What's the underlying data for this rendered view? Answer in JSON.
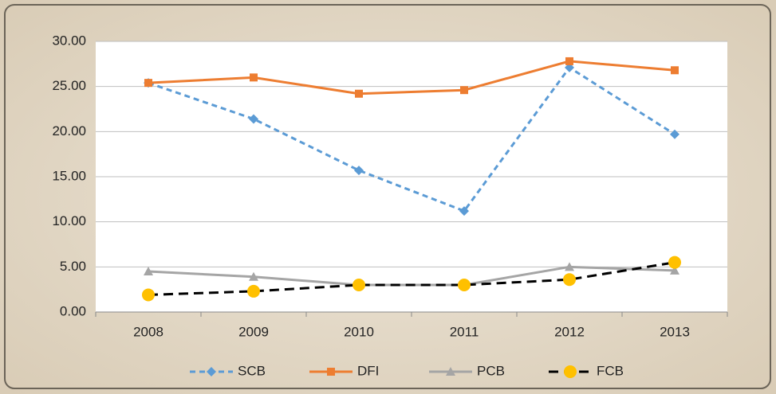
{
  "chart_data": {
    "type": "line",
    "categories": [
      "2008",
      "2009",
      "2010",
      "2011",
      "2012",
      "2013"
    ],
    "series": [
      {
        "name": "SCB",
        "color": "#5b9bd5",
        "dash": "dashed",
        "marker": "diamond",
        "values": [
          25.4,
          21.4,
          15.7,
          11.2,
          27.1,
          19.7
        ]
      },
      {
        "name": "DFI",
        "color": "#ed7d31",
        "dash": "solid",
        "marker": "square",
        "values": [
          25.4,
          26.0,
          24.2,
          24.6,
          27.8,
          26.8
        ]
      },
      {
        "name": "PCB",
        "color": "#a5a5a5",
        "dash": "solid",
        "marker": "triangle",
        "values": [
          4.5,
          3.9,
          3.0,
          3.0,
          5.0,
          4.6
        ]
      },
      {
        "name": "FCB",
        "color": "#000000",
        "marker_color": "#ffc000",
        "dash": "dashed",
        "marker": "circle",
        "values": [
          1.9,
          2.3,
          3.0,
          3.0,
          3.6,
          5.5
        ]
      }
    ],
    "ylim": [
      0,
      30
    ],
    "yticks": [
      {
        "value": 0,
        "label": "0.00"
      },
      {
        "value": 5,
        "label": "5.00"
      },
      {
        "value": 10,
        "label": "10.00"
      },
      {
        "value": 15,
        "label": "15.00"
      },
      {
        "value": 20,
        "label": "20.00"
      },
      {
        "value": 25,
        "label": "25.00"
      },
      {
        "value": 30,
        "label": "30.00"
      }
    ],
    "grid": true,
    "legend": "bottom"
  }
}
